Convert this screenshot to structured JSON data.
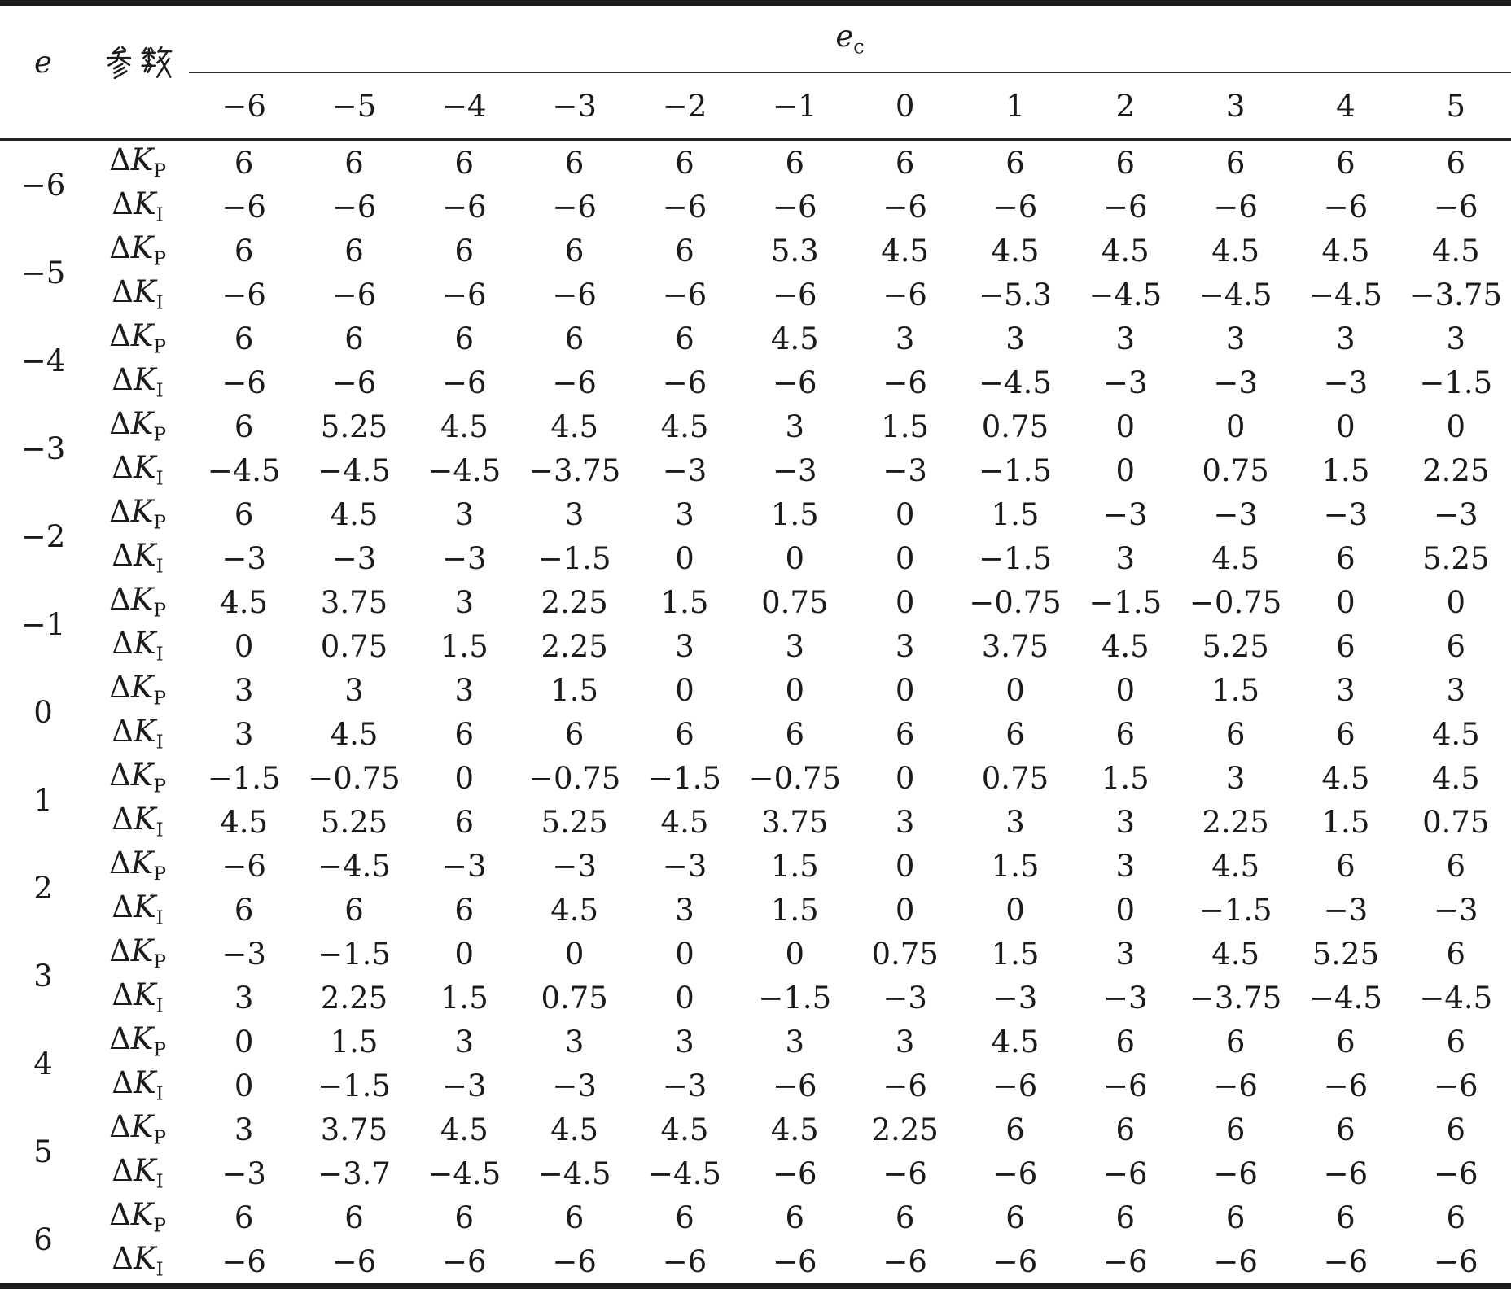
{
  "table": {
    "e_label": "e",
    "param_label": "参数",
    "ec_label": {
      "base": "e",
      "sub": "c"
    },
    "kp_label": {
      "delta": "Δ",
      "k": "K",
      "sub": "P"
    },
    "ki_label": {
      "delta": "Δ",
      "k": "K",
      "sub": "I"
    },
    "ec_columns": [
      "−6",
      "−5",
      "−4",
      "−3",
      "−2",
      "−1",
      "0",
      "1",
      "2",
      "3",
      "4",
      "5"
    ],
    "groups": [
      {
        "e": "−6",
        "kp": [
          "6",
          "6",
          "6",
          "6",
          "6",
          "6",
          "6",
          "6",
          "6",
          "6",
          "6",
          "6"
        ],
        "ki": [
          "−6",
          "−6",
          "−6",
          "−6",
          "−6",
          "−6",
          "−6",
          "−6",
          "−6",
          "−6",
          "−6",
          "−6"
        ]
      },
      {
        "e": "−5",
        "kp": [
          "6",
          "6",
          "6",
          "6",
          "6",
          "5.3",
          "4.5",
          "4.5",
          "4.5",
          "4.5",
          "4.5",
          "4.5"
        ],
        "ki": [
          "−6",
          "−6",
          "−6",
          "−6",
          "−6",
          "−6",
          "−6",
          "−5.3",
          "−4.5",
          "−4.5",
          "−4.5",
          "−3.75"
        ]
      },
      {
        "e": "−4",
        "kp": [
          "6",
          "6",
          "6",
          "6",
          "6",
          "4.5",
          "3",
          "3",
          "3",
          "3",
          "3",
          "3"
        ],
        "ki": [
          "−6",
          "−6",
          "−6",
          "−6",
          "−6",
          "−6",
          "−6",
          "−4.5",
          "−3",
          "−3",
          "−3",
          "−1.5"
        ]
      },
      {
        "e": "−3",
        "kp": [
          "6",
          "5.25",
          "4.5",
          "4.5",
          "4.5",
          "3",
          "1.5",
          "0.75",
          "0",
          "0",
          "0",
          "0"
        ],
        "ki": [
          "−4.5",
          "−4.5",
          "−4.5",
          "−3.75",
          "−3",
          "−3",
          "−3",
          "−1.5",
          "0",
          "0.75",
          "1.5",
          "2.25"
        ]
      },
      {
        "e": "−2",
        "kp": [
          "6",
          "4.5",
          "3",
          "3",
          "3",
          "1.5",
          "0",
          "1.5",
          "−3",
          "−3",
          "−3",
          "−3"
        ],
        "ki": [
          "−3",
          "−3",
          "−3",
          "−1.5",
          "0",
          "0",
          "0",
          "−1.5",
          "3",
          "4.5",
          "6",
          "5.25"
        ]
      },
      {
        "e": "−1",
        "kp": [
          "4.5",
          "3.75",
          "3",
          "2.25",
          "1.5",
          "0.75",
          "0",
          "−0.75",
          "−1.5",
          "−0.75",
          "0",
          "0"
        ],
        "ki": [
          "0",
          "0.75",
          "1.5",
          "2.25",
          "3",
          "3",
          "3",
          "3.75",
          "4.5",
          "5.25",
          "6",
          "6"
        ]
      },
      {
        "e": "0",
        "kp": [
          "3",
          "3",
          "3",
          "1.5",
          "0",
          "0",
          "0",
          "0",
          "0",
          "1.5",
          "3",
          "3"
        ],
        "ki": [
          "3",
          "4.5",
          "6",
          "6",
          "6",
          "6",
          "6",
          "6",
          "6",
          "6",
          "6",
          "4.5"
        ]
      },
      {
        "e": "1",
        "kp": [
          "−1.5",
          "−0.75",
          "0",
          "−0.75",
          "−1.5",
          "−0.75",
          "0",
          "0.75",
          "1.5",
          "3",
          "4.5",
          "4.5"
        ],
        "ki": [
          "4.5",
          "5.25",
          "6",
          "5.25",
          "4.5",
          "3.75",
          "3",
          "3",
          "3",
          "2.25",
          "1.5",
          "0.75"
        ]
      },
      {
        "e": "2",
        "kp": [
          "−6",
          "−4.5",
          "−3",
          "−3",
          "−3",
          "1.5",
          "0",
          "1.5",
          "3",
          "4.5",
          "6",
          "6"
        ],
        "ki": [
          "6",
          "6",
          "6",
          "4.5",
          "3",
          "1.5",
          "0",
          "0",
          "0",
          "−1.5",
          "−3",
          "−3"
        ]
      },
      {
        "e": "3",
        "kp": [
          "−3",
          "−1.5",
          "0",
          "0",
          "0",
          "0",
          "0.75",
          "1.5",
          "3",
          "4.5",
          "5.25",
          "6"
        ],
        "ki": [
          "3",
          "2.25",
          "1.5",
          "0.75",
          "0",
          "−1.5",
          "−3",
          "−3",
          "−3",
          "−3.75",
          "−4.5",
          "−4.5"
        ]
      },
      {
        "e": "4",
        "kp": [
          "0",
          "1.5",
          "3",
          "3",
          "3",
          "3",
          "3",
          "4.5",
          "6",
          "6",
          "6",
          "6"
        ],
        "ki": [
          "0",
          "−1.5",
          "−3",
          "−3",
          "−3",
          "−6",
          "−6",
          "−6",
          "−6",
          "−6",
          "−6",
          "−6"
        ]
      },
      {
        "e": "5",
        "kp": [
          "3",
          "3.75",
          "4.5",
          "4.5",
          "4.5",
          "4.5",
          "2.25",
          "6",
          "6",
          "6",
          "6",
          "6"
        ],
        "ki": [
          "−3",
          "−3.7",
          "−4.5",
          "−4.5",
          "−4.5",
          "−6",
          "−6",
          "−6",
          "−6",
          "−6",
          "−6",
          "−6"
        ]
      },
      {
        "e": "6",
        "kp": [
          "6",
          "6",
          "6",
          "6",
          "6",
          "6",
          "6",
          "6",
          "6",
          "6",
          "6",
          "6"
        ],
        "ki": [
          "−6",
          "−6",
          "−6",
          "−6",
          "−6",
          "−6",
          "−6",
          "−6",
          "−6",
          "−6",
          "−6",
          "−6"
        ]
      }
    ]
  }
}
